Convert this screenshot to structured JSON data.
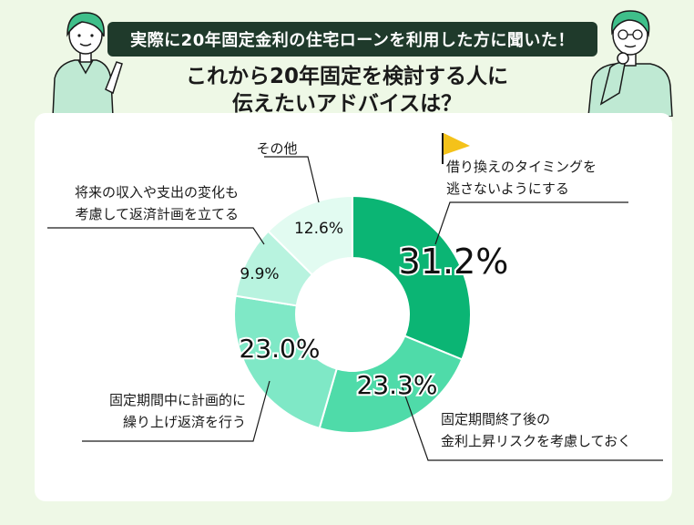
{
  "header": {
    "banner": "実際に20年固定金利の住宅ローンを利用した方に聞いた！",
    "title_line1": "これから20年固定を検討する人に",
    "title_line2": "伝えたいアドバイスは？"
  },
  "colors": {
    "background": "#eef8e6",
    "banner_bg": "#1f3a2b",
    "slice_1": "#0bb574",
    "slice_2": "#4fdba9",
    "slice_3": "#7fe8c6",
    "slice_4": "#b8f3df",
    "slice_5": "#e2fbf1",
    "flag": "#f4c21a"
  },
  "icons": [
    "flag-icon",
    "woman-illustration",
    "man-illustration"
  ],
  "chart_data": {
    "type": "pie",
    "variant": "donut",
    "start": "top, clockwise",
    "slices": [
      {
        "label_lines": [
          "借り換えのタイミングを",
          "逃さないようにする"
        ],
        "value": 31.2,
        "value_text": "31.2%"
      },
      {
        "label_lines": [
          "固定期間終了後の",
          "金利上昇リスクを考慮しておく"
        ],
        "value": 23.3,
        "value_text": "23.3%"
      },
      {
        "label_lines": [
          "固定期間中に計画的に",
          "繰り上げ返済を行う"
        ],
        "value": 23.0,
        "value_text": "23.0%"
      },
      {
        "label_lines": [
          "将来の収入や支出の変化も",
          "考慮して返済計画を立てる"
        ],
        "value": 9.9,
        "value_text": "9.9%"
      },
      {
        "label_lines": [
          "その他"
        ],
        "value": 12.6,
        "value_text": "12.6%"
      }
    ]
  }
}
